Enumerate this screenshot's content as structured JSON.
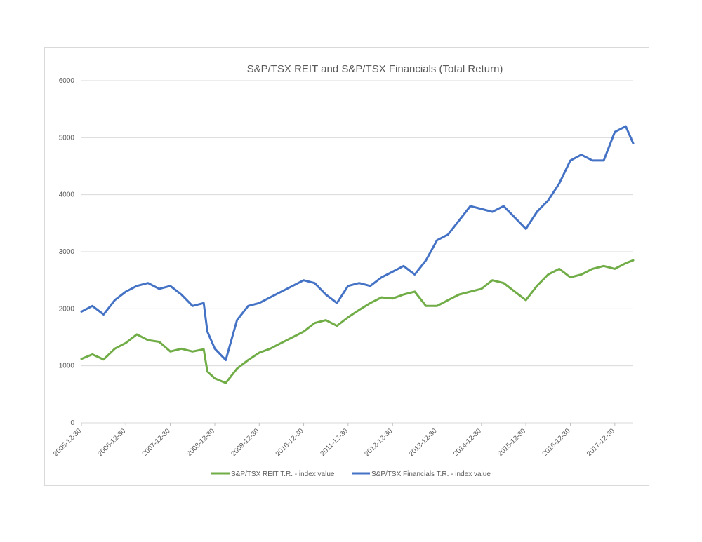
{
  "chart_data": {
    "type": "line",
    "title": "S&P/TSX REIT and S&P/TSX Financials (Total Return)",
    "xlabel": "",
    "ylabel": "",
    "ylim": [
      0,
      6000
    ],
    "y_ticks": [
      "0",
      "1000",
      "2000",
      "3000",
      "4000",
      "5000",
      "6000"
    ],
    "x_ticks": [
      "2005-12-30",
      "2006-12-30",
      "2007-12-30",
      "2008-12-30",
      "2009-12-30",
      "2010-12-30",
      "2011-12-30",
      "2012-12-30",
      "2013-12-30",
      "2014-12-30",
      "2015-12-30",
      "2016-12-30",
      "2017-12-30"
    ],
    "grid": true,
    "legend_position": "bottom",
    "x": [
      "2005-12-30",
      "2006-03-30",
      "2006-06-30",
      "2006-09-30",
      "2006-12-30",
      "2007-03-30",
      "2007-06-30",
      "2007-09-30",
      "2007-12-30",
      "2008-03-30",
      "2008-06-30",
      "2008-09-30",
      "2008-10-30",
      "2008-12-30",
      "2009-03-30",
      "2009-06-30",
      "2009-09-30",
      "2009-12-30",
      "2010-03-30",
      "2010-06-30",
      "2010-09-30",
      "2010-12-30",
      "2011-03-30",
      "2011-06-30",
      "2011-09-30",
      "2011-12-30",
      "2012-03-30",
      "2012-06-30",
      "2012-09-30",
      "2012-12-30",
      "2013-03-30",
      "2013-06-30",
      "2013-09-30",
      "2013-12-30",
      "2014-03-30",
      "2014-06-30",
      "2014-09-30",
      "2014-12-30",
      "2015-03-30",
      "2015-06-30",
      "2015-09-30",
      "2015-12-30",
      "2016-03-30",
      "2016-06-30",
      "2016-09-30",
      "2016-12-30",
      "2017-03-30",
      "2017-06-30",
      "2017-09-30",
      "2017-12-30",
      "2018-03-30",
      "2018-05-30"
    ],
    "series": [
      {
        "name": "S&P/TSX REIT T.R. - index value",
        "color": "#70ad47",
        "values": [
          1120,
          1200,
          1110,
          1300,
          1400,
          1550,
          1450,
          1420,
          1250,
          1300,
          1250,
          1290,
          900,
          780,
          700,
          950,
          1100,
          1230,
          1300,
          1400,
          1500,
          1600,
          1750,
          1800,
          1700,
          1850,
          1980,
          2100,
          2200,
          2180,
          2250,
          2300,
          2050,
          2050,
          2150,
          2250,
          2300,
          2350,
          2500,
          2450,
          2300,
          2150,
          2400,
          2600,
          2700,
          2550,
          2600,
          2700,
          2750,
          2700,
          2800,
          2850
        ]
      },
      {
        "name": "S&P/TSX Financials T.R. - index value",
        "color": "#4472c4",
        "values": [
          1950,
          2050,
          1900,
          2150,
          2300,
          2400,
          2450,
          2350,
          2400,
          2250,
          2050,
          2100,
          1600,
          1300,
          1100,
          1800,
          2050,
          2100,
          2200,
          2300,
          2400,
          2500,
          2450,
          2250,
          2100,
          2400,
          2450,
          2400,
          2550,
          2650,
          2750,
          2600,
          2850,
          3200,
          3300,
          3550,
          3800,
          3750,
          3700,
          3800,
          3600,
          3400,
          3700,
          3900,
          4200,
          4600,
          4700,
          4600,
          4600,
          5100,
          5200,
          4900
        ]
      }
    ]
  }
}
